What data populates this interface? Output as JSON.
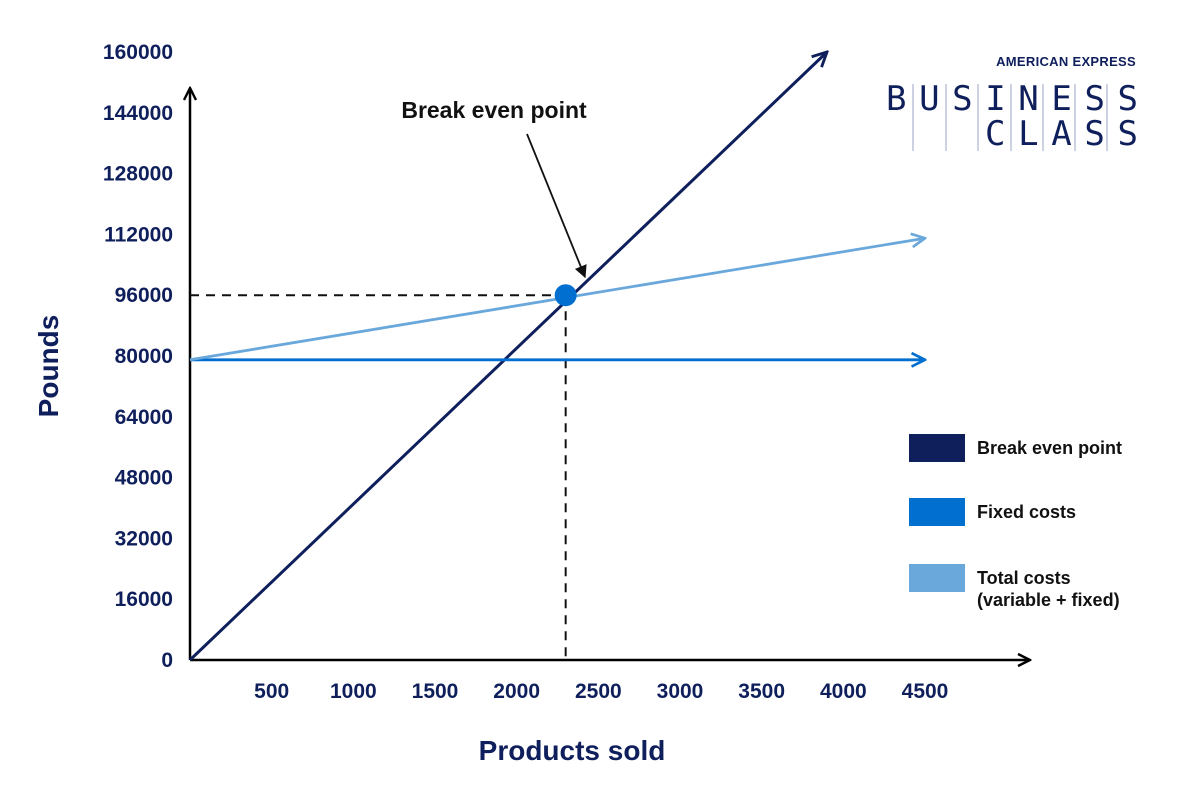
{
  "brand": {
    "company": "AMERICAN EXPRESS",
    "line1": "BUSINESS",
    "line2": "CLASS"
  },
  "chart_data": {
    "type": "line",
    "title": "",
    "xlabel": "Products sold",
    "ylabel": "Pounds",
    "x_ticks": [
      "500",
      "1000",
      "1500",
      "2000",
      "2500",
      "3000",
      "3500",
      "4000",
      "4500"
    ],
    "y_ticks": [
      "0",
      "16000",
      "32000",
      "48000",
      "64000",
      "80000",
      "96000",
      "112000",
      "128000",
      "144000",
      "160000"
    ],
    "xlim": [
      0,
      4800
    ],
    "ylim": [
      0,
      160000
    ],
    "grid": false,
    "legend_position": "right",
    "series": [
      {
        "name": "Break even point",
        "color": "#0f1f5c",
        "points": [
          [
            0,
            0
          ],
          [
            3900,
            160000
          ]
        ]
      },
      {
        "name": "Fixed costs",
        "color": "#006fcf",
        "points": [
          [
            0,
            79000
          ],
          [
            4500,
            79000
          ]
        ]
      },
      {
        "name": "Total costs\n(variable + fixed)",
        "color": "#6aa8dc",
        "points": [
          [
            0,
            79000
          ],
          [
            4500,
            111000
          ]
        ]
      }
    ],
    "break_even": {
      "label": "Break even point",
      "x": 2300,
      "y": 96000,
      "color": "#006fcf"
    }
  }
}
